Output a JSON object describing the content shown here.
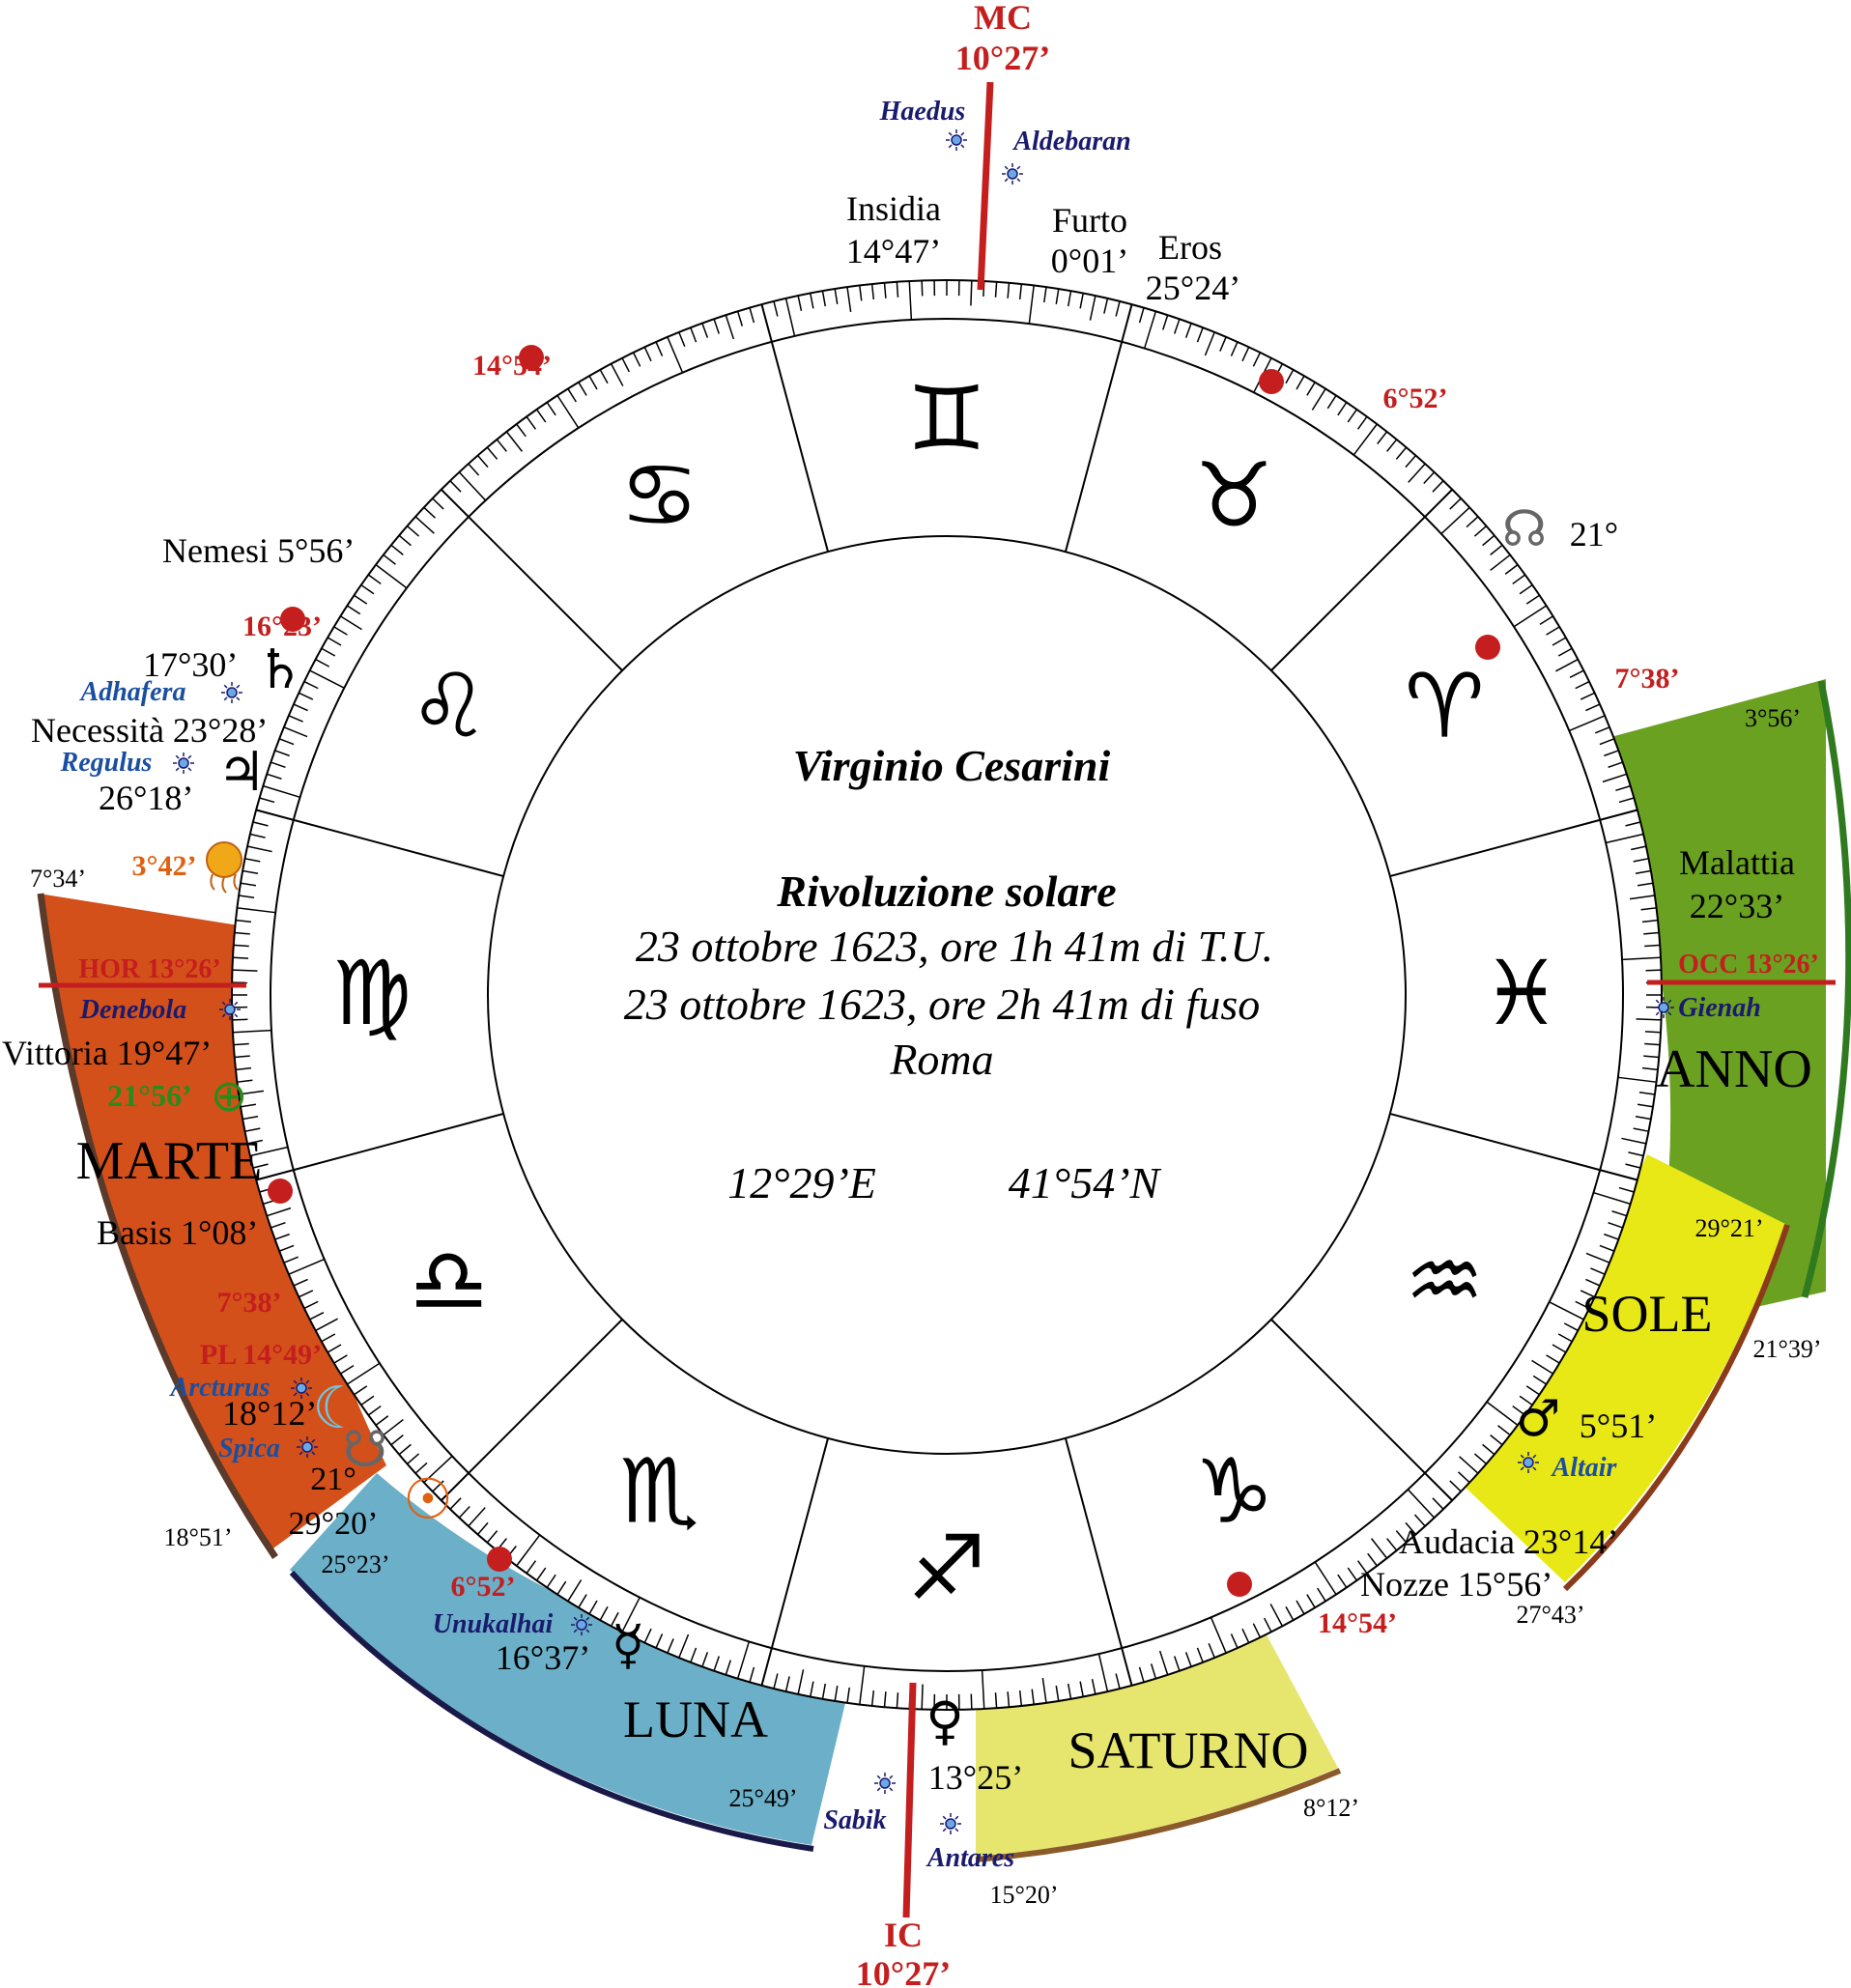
{
  "title": "Virginio Cesarini",
  "subtitle": "Rivoluzione solare",
  "date_ut": "23 ottobre 1623, ore 1h 41m di T.U.",
  "date_local": "23 ottobre 1623, ore 2h 41m di fuso",
  "place": "Roma",
  "longitude": "12°29’E",
  "latitude": "41°54’N",
  "axes": {
    "mc_label": "MC",
    "mc_deg": "10°27’",
    "ic_label": "IC",
    "ic_deg": "10°27’",
    "hor": "HOR 13°26’",
    "occ": "OCC 13°26’"
  },
  "signs": [
    {
      "name": "Gemini",
      "glyph": "♊"
    },
    {
      "name": "Taurus",
      "glyph": "♉"
    },
    {
      "name": "Aries",
      "glyph": "♈"
    },
    {
      "name": "Pisces",
      "glyph": "♓"
    },
    {
      "name": "Aquarius",
      "glyph": "♒"
    },
    {
      "name": "Capricorn",
      "glyph": "♑"
    },
    {
      "name": "Sagittarius",
      "glyph": "♐"
    },
    {
      "name": "Scorpio",
      "glyph": "♏"
    },
    {
      "name": "Libra",
      "glyph": "♎"
    },
    {
      "name": "Virgo",
      "glyph": "♍"
    },
    {
      "name": "Leo",
      "glyph": "♌"
    },
    {
      "name": "Cancer",
      "glyph": "♋"
    }
  ],
  "sectors": {
    "anno": {
      "label": "ANNO",
      "start": "3°56’",
      "end": "21°39’",
      "color": "#6aa121",
      "edge": "#2f7a1e"
    },
    "sole": {
      "label": "SOLE",
      "start": "29°21’",
      "end": "27°43’",
      "color": "#e8e816",
      "edge": "#8b3a1a"
    },
    "saturno": {
      "label": "SATURNO",
      "start": "8°12’",
      "end": "15°20’",
      "color": "#e6e66f",
      "edge": "#8b5a2b"
    },
    "luna": {
      "label": "LUNA",
      "start": "25°49’",
      "end": "25°23’",
      "color": "#6bb0c8",
      "edge": "#1a1a4a"
    },
    "marte": {
      "label": "MARTE",
      "start": "18°51’",
      "end": "7°34’",
      "color": "#d4501a",
      "edge": "#5a3a2a"
    }
  },
  "lots": {
    "insidia": "Insidia",
    "insidia_deg": "14°47’",
    "furto": "Furto",
    "furto_deg": "0°01’",
    "eros": "Eros",
    "eros_deg": "25°24’",
    "nemesi": "Nemesi 5°56’",
    "necessita": "Necessità 23°28’",
    "vittoria": "Vittoria 19°47’",
    "basis": "Basis 1°08’",
    "malattia": "Malattia",
    "malattia_deg": "22°33’",
    "audacia": "Audacia 23°14’",
    "nozze": "Nozze 15°56’"
  },
  "stars": {
    "haedus": "Haedus",
    "aldebaran": "Aldebaran",
    "adhafera": "Adhafera",
    "regulus": "Regulus",
    "denebola": "Denebola",
    "arcturus": "Arcturus",
    "spica": "Spica",
    "unukalhai": "Unukalhai",
    "sabik": "Sabik",
    "antares": "Antares",
    "altair": "Altair",
    "gienah": "Gienah"
  },
  "planets": {
    "saturn": {
      "glyph": "♄",
      "deg": "17°30’"
    },
    "jupiter": {
      "glyph": "♃",
      "deg": "26°18’"
    },
    "fortune": {
      "glyph": "⊕",
      "deg": "21°56’"
    },
    "moon": {
      "glyph": "☾",
      "deg": "18°12’"
    },
    "south_node": {
      "glyph": "☋",
      "deg": "21°"
    },
    "sun": {
      "glyph": "☉",
      "deg": "29°20’"
    },
    "mercury": {
      "glyph": "☿",
      "deg": "16°37’"
    },
    "venus": {
      "glyph": "♀",
      "deg": "13°25’"
    },
    "mars": {
      "glyph": "♂",
      "deg": "5°51’"
    },
    "north_node": {
      "glyph": "☊",
      "deg": "21°"
    },
    "vortex": {
      "deg": "3°42’"
    }
  },
  "cusps": {
    "c1": "14°54’",
    "c2": "6°52’",
    "c3": "7°38’",
    "c4": "16°23’",
    "c5": "7°38’",
    "c6": "6°52’",
    "c7": "14°54’",
    "pl": "PL  14°49’"
  },
  "colors": {
    "red": "#c41e1e",
    "star": "#1a1a6e",
    "star_blue": "#1a4fa0",
    "green": "#2a8a1a",
    "orange": "#e06010"
  }
}
